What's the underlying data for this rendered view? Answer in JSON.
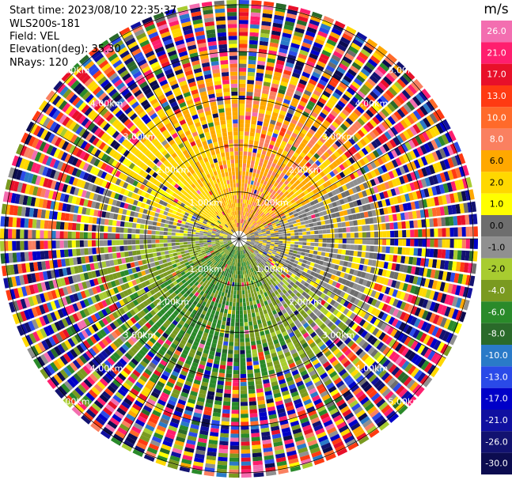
{
  "header": {
    "start_time": "Start time: 2023/08/10 22:35:37",
    "instrument": "WLS200s-181",
    "field": "Field: VEL",
    "elevation": "Elevation(deg): 35.30",
    "nrays": "NRays: 120"
  },
  "colorbar": {
    "unit": "m/s",
    "labels": [
      "26.0",
      "21.0",
      "17.0",
      "13.0",
      "10.0",
      "8.0",
      "6.0",
      "2.0",
      "1.0",
      "0.0",
      "-1.0",
      "-2.0",
      "-4.0",
      "-6.0",
      "-8.0",
      "-10.0",
      "-13.0",
      "-17.0",
      "-21.0",
      "-26.0",
      "-30.0"
    ],
    "colors": [
      "#f36eb0",
      "#ff1e6e",
      "#e8102a",
      "#ff3a12",
      "#ff6a2a",
      "#fa8060",
      "#ffa800",
      "#ffd800",
      "#ffff00",
      "#6e6e6e",
      "#909090",
      "#a8cc30",
      "#7a9a20",
      "#2a8a2a",
      "#2a6a2a",
      "#2a7ac8",
      "#2a4ae8",
      "#0000c8",
      "#1010a0",
      "#121270",
      "#0c0c50"
    ]
  },
  "chart_data": {
    "type": "heatmap",
    "projection": "polar PPI",
    "field": "VEL",
    "units": "m/s",
    "n_rays": 120,
    "elevation_deg": 35.3,
    "range_ring_labels": [
      "1.00km",
      "2.00km",
      "3.00km",
      "4.00km",
      "5.00km"
    ],
    "range_rings_km": [
      1,
      2,
      3,
      4,
      5
    ],
    "max_range_km": 5.1,
    "color_levels": [
      -30,
      -26,
      -21,
      -17,
      -13,
      -10,
      -8,
      -6,
      -4,
      -2,
      -1,
      0,
      1,
      2,
      6,
      8,
      10,
      13,
      17,
      21,
      26
    ],
    "pattern_summary": {
      "north_sector_inner": "positive velocities 6 to 10 m/s (orange/yellow)",
      "east_sector": "near-zero (gray)",
      "south_sector": "negative velocities -2 to -8 m/s (green)",
      "outer_gates": "noisy, all colors"
    }
  }
}
